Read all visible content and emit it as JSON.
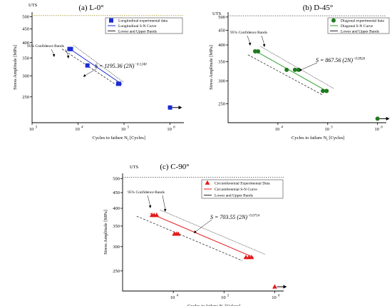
{
  "chart_data": [
    {
      "type": "scatter",
      "title": "(a) L-0°",
      "xlabel": "Cycles to failure N",
      "xlabel_sub": "f",
      "xlabel_tail": " [Cycles]",
      "ylabel": "Stress Amplitude [MPa]",
      "x_scale": "log",
      "y_scale": "log",
      "xlim": [
        1000,
        2000000
      ],
      "ylim": [
        200,
        520
      ],
      "x_ticks": [
        1000,
        10000,
        100000,
        1000000
      ],
      "x_tick_labels": [
        "10",
        "10",
        "10",
        "10"
      ],
      "x_tick_sup": [
        "3",
        "4",
        "5",
        "6"
      ],
      "y_ticks": [
        250,
        300,
        350,
        400,
        450,
        500
      ],
      "y_tick_labels": [
        "250",
        "300",
        "350",
        "400",
        "450",
        "500"
      ],
      "uts_label": "UTS",
      "uts_value": 505,
      "ci_label": "95% Confidence Bands",
      "equation": "S = 1195.36 (2N)",
      "equation_exp": "−0.1240",
      "marker": "square",
      "color": "#1a2bd6",
      "legend": [
        {
          "label": "Longitudinal experimental data",
          "kind": "marker"
        },
        {
          "label": "Longitudinal S-N Curve",
          "kind": "line",
          "color": "#1a2bd6"
        },
        {
          "label": "Lower and Upper Bands",
          "kind": "line",
          "color": "#222222"
        }
      ],
      "legend_position": "top-right",
      "points": [
        [
          6500,
          378
        ],
        [
          7000,
          378
        ],
        [
          16000,
          328
        ],
        [
          75000,
          280
        ],
        [
          78000,
          280
        ]
      ],
      "runout": [
        [
          1000000,
          228
        ]
      ],
      "fit": [
        [
          6000,
          383
        ],
        [
          90000,
          279
        ]
      ],
      "band_upper": [
        [
          8000,
          390
        ],
        [
          100000,
          283
        ]
      ],
      "band_lower": [
        [
          4500,
          378
        ],
        [
          75000,
          274
        ]
      ]
    },
    {
      "type": "scatter",
      "title": "(b) D-45°",
      "xlabel": "Cycles to failure N",
      "xlabel_sub": "f",
      "xlabel_tail": " [Cycles]",
      "ylabel": "Stress Amplitude [MPa]",
      "x_scale": "log",
      "y_scale": "log",
      "xlim": [
        1000,
        1500000
      ],
      "ylim": [
        215,
        520
      ],
      "x_ticks": [
        10000,
        100000,
        1000000
      ],
      "x_tick_labels": [
        "10",
        "10",
        "10"
      ],
      "x_tick_sup": [
        "4",
        "5",
        "6"
      ],
      "y_ticks": [
        250,
        300,
        350,
        400,
        450,
        500
      ],
      "y_tick_labels": [
        "250",
        "300",
        "350",
        "400",
        "450",
        "500"
      ],
      "uts_label": "UTS",
      "uts_value": 505,
      "ci_label": "95% Confidence Bands",
      "equation": "S = 867.56 (2N)",
      "equation_exp": "−0.0926",
      "marker": "circle",
      "color": "#1f7a1f",
      "legend": [
        {
          "label": "Diagonal experimental data",
          "kind": "marker"
        },
        {
          "label": "Diagonal S-N Curve",
          "kind": "line",
          "color": "#2ea02e"
        },
        {
          "label": "Lower and Upper Bands",
          "kind": "line",
          "color": "#222222"
        }
      ],
      "legend_position": "top-right",
      "points": [
        [
          3500,
          380
        ],
        [
          4000,
          380
        ],
        [
          15000,
          328
        ],
        [
          22000,
          328
        ],
        [
          26000,
          328
        ],
        [
          80000,
          277
        ],
        [
          95000,
          277
        ]
      ],
      "runout": [
        [
          1000000,
          222
        ]
      ],
      "fit": [
        [
          3200,
          385
        ],
        [
          95000,
          277
        ]
      ],
      "band_upper": [
        [
          4500,
          395
        ],
        [
          130000,
          283
        ]
      ],
      "band_lower": [
        [
          2500,
          370
        ],
        [
          80000,
          268
        ]
      ]
    },
    {
      "type": "scatter",
      "title": "(c) C-90°",
      "xlabel": "Cycles to failure N",
      "xlabel_sub": "f",
      "xlabel_tail": " [Cylces]",
      "ylabel": "Stress Amplitude [MPa]",
      "x_scale": "log",
      "y_scale": "log",
      "xlim": [
        1000,
        1500000
      ],
      "ylim": [
        215,
        520
      ],
      "x_ticks": [
        10000,
        100000,
        1000000
      ],
      "x_tick_labels": [
        "10",
        "10",
        "10"
      ],
      "x_tick_sup": [
        "4",
        "5",
        "6"
      ],
      "y_ticks": [
        250,
        300,
        350,
        400,
        450,
        500
      ],
      "y_tick_labels": [
        "250",
        "300",
        "350",
        "400",
        "450",
        "500"
      ],
      "uts_label": "UTS",
      "uts_value": 505,
      "ci_label": "95% Confidence Bands",
      "equation": "S = 703.55 (2N)",
      "equation_exp": "−0.0714",
      "marker": "triangle",
      "color": "#e31a1a",
      "legend": [
        {
          "label": "Circumferential Experimental Data",
          "kind": "marker"
        },
        {
          "label": "Circumferential S-N Curve",
          "kind": "line",
          "color": "#e31a1a"
        },
        {
          "label": "Lower and Upper Bands",
          "kind": "line",
          "color": "#222222"
        }
      ],
      "legend_position": "top-right",
      "points": [
        [
          3800,
          380
        ],
        [
          4200,
          380
        ],
        [
          4700,
          380
        ],
        [
          10500,
          330
        ],
        [
          11500,
          330
        ],
        [
          12500,
          330
        ],
        [
          270000,
          277
        ],
        [
          310000,
          277
        ],
        [
          350000,
          277
        ]
      ],
      "runout": [
        [
          1000000,
          222
        ]
      ],
      "fit": [
        [
          3500,
          385
        ],
        [
          380000,
          277
        ]
      ],
      "band_upper": [
        [
          5500,
          395
        ],
        [
          650000,
          283
        ]
      ],
      "band_lower": [
        [
          1900,
          377
        ],
        [
          230000,
          270
        ]
      ]
    }
  ]
}
